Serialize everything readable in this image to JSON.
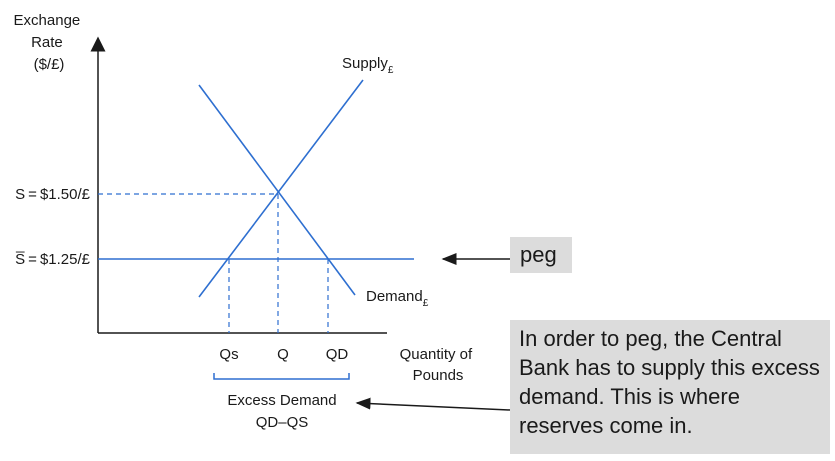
{
  "axes": {
    "y_label": [
      "Exchange",
      "Rate",
      "($/£)"
    ],
    "x_label": [
      "Quantity of",
      "Pounds"
    ]
  },
  "curves": {
    "supply": {
      "label": "Supply",
      "subscript": "£"
    },
    "demand": {
      "label": "Demand",
      "subscript": "£"
    }
  },
  "prices": {
    "equilibrium": "S = $1.50/£",
    "peg": "S̅ = $1.25/£"
  },
  "quantities": {
    "qs": "Qs",
    "q": "Q",
    "qd": "QD"
  },
  "excess_demand": {
    "label": "Excess Demand",
    "formula": "QD–QS"
  },
  "annotations": {
    "peg": "peg",
    "note": "In order to peg, the Central Bank has to supply this excess demand.  This is where reserves come in."
  },
  "colors": {
    "curve": "#2e6fd0",
    "axis": "#1a1a1a",
    "box": "#dcdcdc"
  }
}
